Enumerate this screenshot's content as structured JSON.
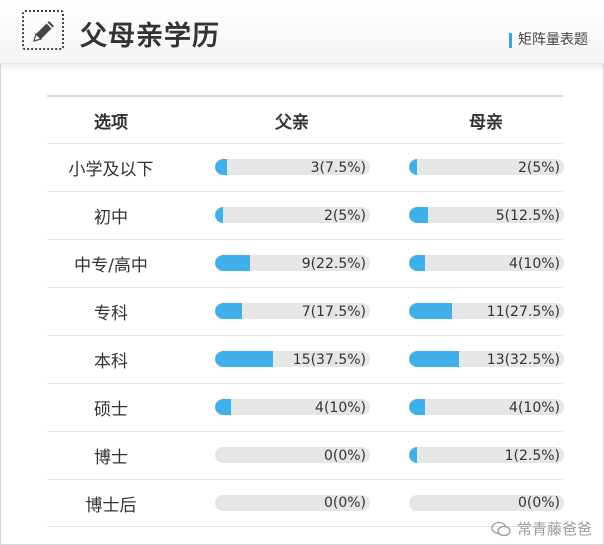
{
  "header": {
    "title": "父母亲学历",
    "subtitle": "矩阵量表题"
  },
  "watermark": "常青藤爸爸",
  "columns": {
    "option": "选项",
    "father": "父亲",
    "mother": "母亲"
  },
  "chart_data": {
    "type": "bar",
    "categories": [
      "小学及以下",
      "初中",
      "中专/高中",
      "专科",
      "本科",
      "硕士",
      "博士",
      "博士后"
    ],
    "series": [
      {
        "name": "父亲",
        "values": [
          3,
          2,
          9,
          7,
          15,
          4,
          0,
          0
        ],
        "labels": [
          "3(7.5%)",
          "2(5%)",
          "9(22.5%)",
          "7(17.5%)",
          "15(37.5%)",
          "4(10%)",
          "0(0%)",
          "0(0%)"
        ],
        "percent": [
          7.5,
          5,
          22.5,
          17.5,
          37.5,
          10,
          0,
          0
        ]
      },
      {
        "name": "母亲",
        "values": [
          2,
          5,
          4,
          11,
          13,
          4,
          1,
          0
        ],
        "labels": [
          "2(5%)",
          "5(12.5%)",
          "4(10%)",
          "11(27.5%)",
          "13(32.5%)",
          "4(10%)",
          "1(2.5%)",
          "0(0%)"
        ],
        "percent": [
          5,
          12.5,
          10,
          27.5,
          32.5,
          10,
          2.5,
          0
        ]
      }
    ],
    "title": "父母亲学历",
    "xlabel": "",
    "ylabel": "",
    "xlim": [
      0,
      100
    ]
  },
  "colors": {
    "bar_fill": "#3fb0ea",
    "bar_track": "#e6e6e6",
    "accent": "#2fa8e6"
  }
}
